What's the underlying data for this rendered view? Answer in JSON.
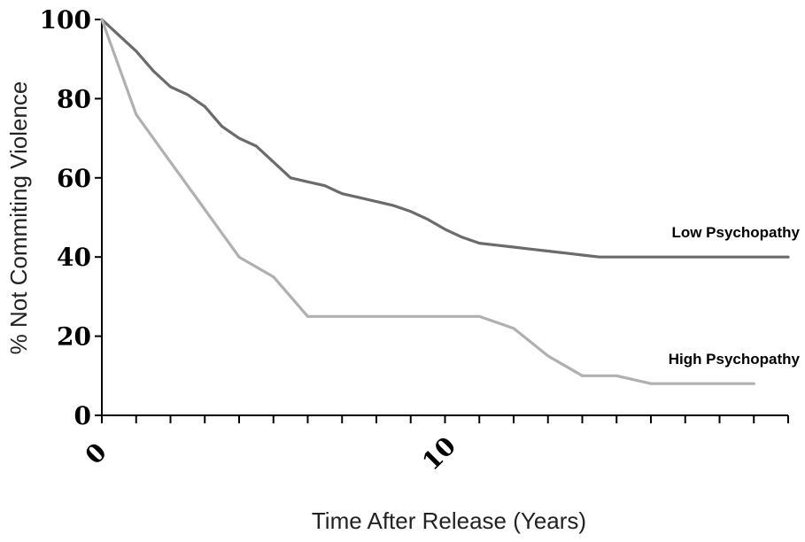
{
  "chart_data": {
    "type": "line",
    "xlabel": "Time After Release (Years)",
    "ylabel": "% Not Commiting Violence",
    "xlim": [
      0,
      20
    ],
    "ylim": [
      0,
      100
    ],
    "x_ticks": [
      0,
      10
    ],
    "x_minor_tick_step": 1,
    "y_ticks": [
      0,
      20,
      40,
      60,
      80,
      100
    ],
    "grid": false,
    "legend": "inline labels at right",
    "series": [
      {
        "name": "Low Psychopathy",
        "color": "#6b6b6b",
        "x": [
          0,
          0.5,
          1,
          1.5,
          2,
          2.5,
          3,
          3.5,
          4,
          4.5,
          5,
          5.5,
          6,
          6.5,
          7,
          7.5,
          8,
          8.5,
          9,
          9.5,
          10,
          10.5,
          11,
          11.5,
          12,
          12.5,
          13,
          13.5,
          14,
          14.5,
          15,
          16,
          17,
          18,
          19,
          20
        ],
        "values": [
          100,
          96,
          92,
          87,
          83,
          81,
          78,
          73,
          70,
          68,
          64,
          60,
          59,
          58,
          56,
          55,
          54,
          53,
          51.5,
          49.5,
          47,
          45,
          43.5,
          43,
          42.5,
          42,
          41.5,
          41,
          40.5,
          40,
          40,
          40,
          40,
          40,
          40,
          40
        ]
      },
      {
        "name": "High Psychopathy",
        "color": "#b0b0b0",
        "x": [
          0,
          1,
          2,
          3,
          4,
          5,
          6,
          7,
          8,
          9,
          10,
          11,
          12,
          13,
          14,
          15,
          16,
          17,
          18,
          19
        ],
        "values": [
          100,
          76,
          64,
          52,
          40,
          35,
          25,
          25,
          25,
          25,
          25,
          25,
          22,
          15,
          10,
          10,
          8,
          8,
          8,
          8
        ]
      }
    ]
  }
}
